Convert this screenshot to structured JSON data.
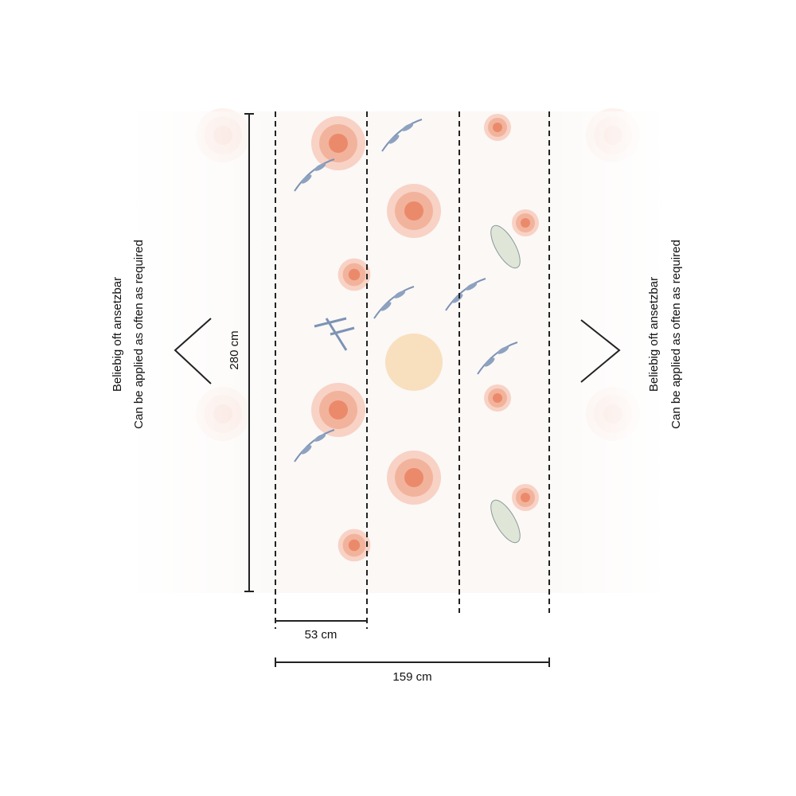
{
  "dimensions": {
    "height": "280 cm",
    "panel_width": "53 cm",
    "total_width": "159 cm"
  },
  "side_notes": {
    "left": [
      "Beliebig oft ansetzbar",
      "Can be applied as often as required"
    ],
    "right": [
      "Beliebig oft ansetzbar",
      "Can be applied as often as required"
    ]
  }
}
